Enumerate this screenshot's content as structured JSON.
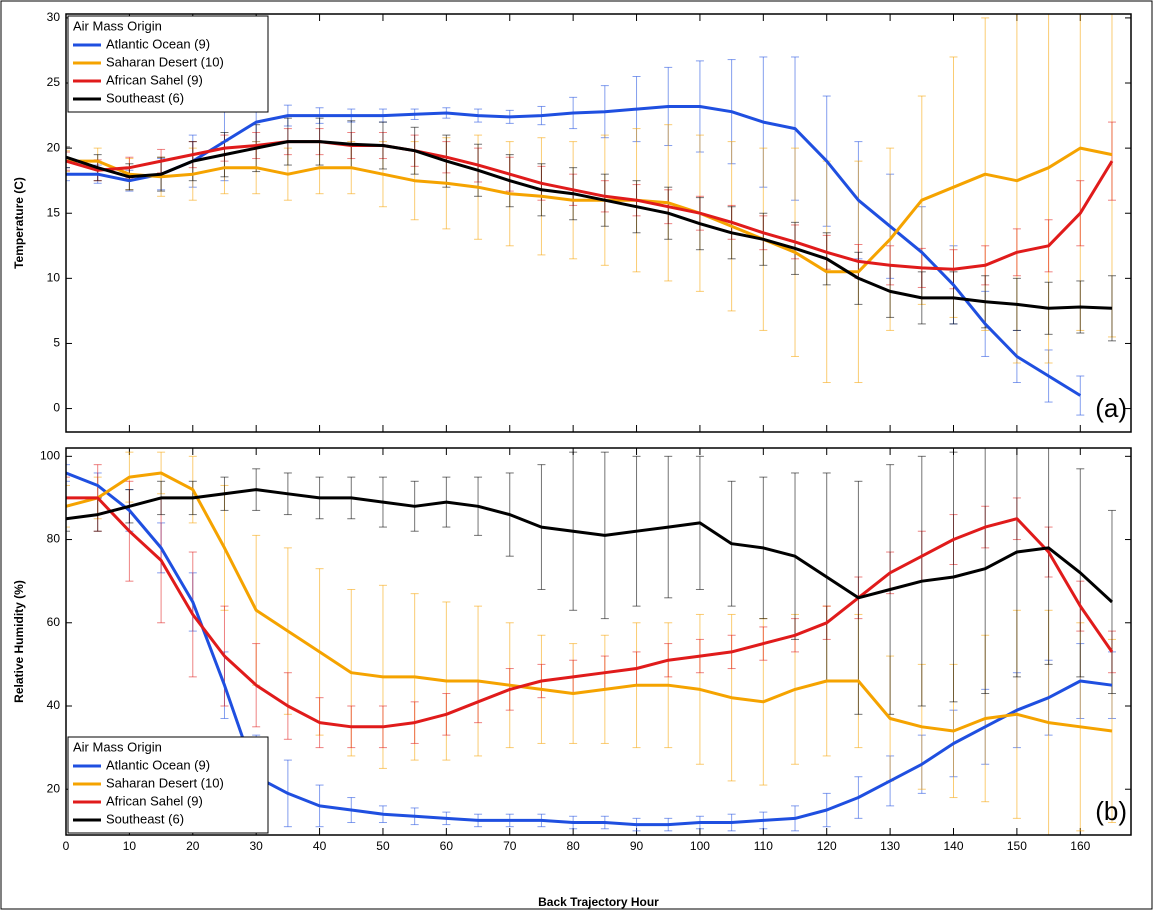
{
  "chart_data": [
    {
      "type": "line",
      "ylabel": "Temperature (C)",
      "annotation": "(a)",
      "legend_title": "Air Mass Origin",
      "legend": "upper left",
      "x": [
        0,
        5,
        10,
        15,
        20,
        25,
        30,
        35,
        40,
        45,
        50,
        55,
        60,
        65,
        70,
        75,
        80,
        85,
        90,
        95,
        100,
        105,
        110,
        115,
        120,
        125,
        130,
        135,
        140,
        145,
        150,
        155,
        160,
        165
      ],
      "xlim": [
        0,
        168
      ],
      "xticks": [
        0,
        10,
        20,
        30,
        40,
        50,
        60,
        70,
        80,
        90,
        100,
        110,
        120,
        130,
        140,
        150,
        160
      ],
      "ylim": [
        -1.8,
        30.3
      ],
      "yticks": [
        0,
        5,
        10,
        15,
        20,
        25,
        30
      ],
      "series": [
        {
          "name": "Atlantic Ocean (9)",
          "color": "#1f4fe0",
          "values": [
            18,
            18,
            17.5,
            18,
            19,
            20.5,
            22,
            22.5,
            22.5,
            22.5,
            22.5,
            22.6,
            22.7,
            22.5,
            22.4,
            22.5,
            22.7,
            22.8,
            23,
            23.2,
            23.2,
            22.8,
            22,
            21.5,
            19,
            16,
            14,
            12,
            9.5,
            6.5,
            4,
            2.5,
            1,
            null
          ],
          "errors": [
            0.5,
            0.7,
            0.8,
            1.2,
            2,
            3,
            1.5,
            0.8,
            0.6,
            0.5,
            0.5,
            0.4,
            0.4,
            0.5,
            0.5,
            0.7,
            1.2,
            2,
            2.5,
            3,
            3.5,
            4,
            5,
            5.5,
            5,
            4.5,
            4,
            3.5,
            3,
            2.5,
            2,
            2,
            1.5,
            null
          ]
        },
        {
          "name": "Saharan Desert (10)",
          "color": "#f5a300",
          "values": [
            19,
            19,
            18,
            17.8,
            18,
            18.5,
            18.5,
            18,
            18.5,
            18.5,
            18,
            17.5,
            17.3,
            17,
            16.5,
            16.3,
            16,
            16,
            16,
            15.8,
            15,
            14,
            13,
            12,
            10.5,
            10.5,
            13,
            16,
            17,
            18,
            17.5,
            18.5,
            20,
            19.5
          ],
          "errors": [
            0.8,
            1,
            1.2,
            1.5,
            2,
            2,
            2,
            2,
            2,
            2,
            2.5,
            3,
            3.5,
            4,
            4,
            4.5,
            4.5,
            5,
            5.5,
            6,
            6,
            6.5,
            7,
            8,
            8.5,
            8.5,
            7,
            8,
            10,
            12,
            14,
            15,
            14,
            14
          ]
        },
        {
          "name": "African Sahel (9)",
          "color": "#e01b1b",
          "values": [
            19,
            18.3,
            18.5,
            19,
            19.5,
            20,
            20.2,
            20.5,
            20.5,
            20.2,
            20.2,
            19.8,
            19.3,
            18.7,
            18,
            17.3,
            16.8,
            16.3,
            16,
            15.5,
            15,
            14.3,
            13.5,
            12.8,
            12,
            11.3,
            11,
            10.8,
            10.7,
            11,
            12,
            12.5,
            15,
            19
          ],
          "errors": [
            0.7,
            0.8,
            0.8,
            0.9,
            1,
            1,
            1,
            1,
            1,
            1,
            1,
            1.2,
            1.2,
            1.3,
            1.3,
            1.3,
            1.2,
            1.2,
            1.2,
            1.3,
            1.3,
            1.3,
            1.3,
            1.3,
            1.3,
            1.3,
            1.5,
            1.5,
            1.5,
            1.5,
            1.8,
            2,
            2.5,
            3
          ]
        },
        {
          "name": "Southeast (6)",
          "color": "#000000",
          "values": [
            19.3,
            18.5,
            17.8,
            18,
            19,
            19.5,
            20,
            20.5,
            20.5,
            20.3,
            20.2,
            19.8,
            19,
            18.3,
            17.5,
            16.8,
            16.5,
            16,
            15.5,
            15,
            14.2,
            13.5,
            13,
            12.3,
            11.5,
            10,
            9,
            8.5,
            8.5,
            8.2,
            8,
            7.7,
            7.8,
            7.7
          ],
          "errors": [
            0.8,
            1,
            1,
            1.3,
            1.5,
            1.7,
            1.8,
            1.8,
            1.8,
            1.8,
            1.8,
            1.8,
            2,
            2,
            2,
            2,
            2,
            2,
            2,
            2,
            2,
            2,
            2,
            2,
            2,
            2,
            2,
            2,
            2,
            2,
            2,
            2,
            2,
            2.5
          ]
        }
      ]
    },
    {
      "type": "line",
      "xlabel": "Back Trajectory Hour",
      "ylabel": "Relative Humidity (%)",
      "annotation": "(b)",
      "legend_title": "Air Mass Origin",
      "legend": "lower left",
      "x": [
        0,
        5,
        10,
        15,
        20,
        25,
        30,
        35,
        40,
        45,
        50,
        55,
        60,
        65,
        70,
        75,
        80,
        85,
        90,
        95,
        100,
        105,
        110,
        115,
        120,
        125,
        130,
        135,
        140,
        145,
        150,
        155,
        160,
        165
      ],
      "xlim": [
        0,
        168
      ],
      "xticks": [
        0,
        10,
        20,
        30,
        40,
        50,
        60,
        70,
        80,
        90,
        100,
        110,
        120,
        130,
        140,
        150,
        160
      ],
      "ylim": [
        9,
        102
      ],
      "yticks": [
        20,
        40,
        60,
        80,
        100
      ],
      "series": [
        {
          "name": "Atlantic Ocean (9)",
          "color": "#1f4fe0",
          "values": [
            96,
            93,
            87,
            78,
            65,
            45,
            23,
            19,
            16,
            15,
            14,
            13.5,
            13,
            12.5,
            12.5,
            12.5,
            12,
            12,
            11.5,
            11.5,
            12,
            12,
            12.5,
            13,
            15,
            18,
            22,
            26,
            31,
            35,
            39,
            42,
            46,
            45
          ],
          "errors": [
            2,
            3,
            5,
            6,
            7,
            8,
            10,
            8,
            5,
            3,
            2,
            2,
            1.5,
            1.5,
            1.5,
            1.5,
            1.5,
            1.5,
            1.5,
            1.5,
            1.5,
            2,
            2,
            3,
            4,
            5,
            6,
            7,
            8,
            9,
            9,
            9,
            9,
            8
          ]
        },
        {
          "name": "Saharan Desert (10)",
          "color": "#f5a300",
          "values": [
            88,
            90,
            95,
            96,
            92,
            78,
            63,
            58,
            53,
            48,
            47,
            47,
            46,
            46,
            45,
            44,
            43,
            44,
            45,
            45,
            44,
            42,
            41,
            44,
            46,
            46,
            37,
            35,
            34,
            37,
            38,
            36,
            35,
            34
          ],
          "errors": [
            5,
            5,
            6,
            5,
            8,
            15,
            18,
            20,
            20,
            20,
            22,
            20,
            19,
            18,
            15,
            13,
            12,
            13,
            15,
            15,
            18,
            20,
            20,
            18,
            18,
            16,
            15,
            15,
            16,
            20,
            25,
            27,
            25,
            22
          ]
        },
        {
          "name": "African Sahel (9)",
          "color": "#e01b1b",
          "values": [
            90,
            90,
            82,
            75,
            62,
            52,
            45,
            40,
            36,
            35,
            35,
            36,
            38,
            41,
            44,
            46,
            47,
            48,
            49,
            51,
            52,
            53,
            55,
            57,
            60,
            66,
            72,
            76,
            80,
            83,
            85,
            77,
            64,
            53
          ],
          "errors": [
            5,
            8,
            12,
            15,
            15,
            12,
            10,
            8,
            6,
            5,
            5,
            5,
            5,
            5,
            5,
            4,
            4,
            4,
            4,
            4,
            4,
            4,
            4,
            4,
            4,
            5,
            5,
            6,
            6,
            5,
            5,
            6,
            6,
            5
          ]
        },
        {
          "name": "Southeast (6)",
          "color": "#000000",
          "values": [
            85,
            86,
            88,
            90,
            90,
            91,
            92,
            91,
            90,
            90,
            89,
            88,
            89,
            88,
            86,
            83,
            82,
            81,
            82,
            83,
            84,
            79,
            78,
            76,
            71,
            66,
            68,
            70,
            71,
            73,
            77,
            78,
            72,
            65
          ],
          "errors": [
            3,
            4,
            4,
            4,
            4,
            4,
            5,
            5,
            5,
            5,
            6,
            6,
            6,
            7,
            10,
            15,
            19,
            20,
            18,
            17,
            16,
            15,
            17,
            20,
            25,
            28,
            30,
            30,
            30,
            30,
            30,
            28,
            25,
            22
          ]
        }
      ]
    }
  ]
}
